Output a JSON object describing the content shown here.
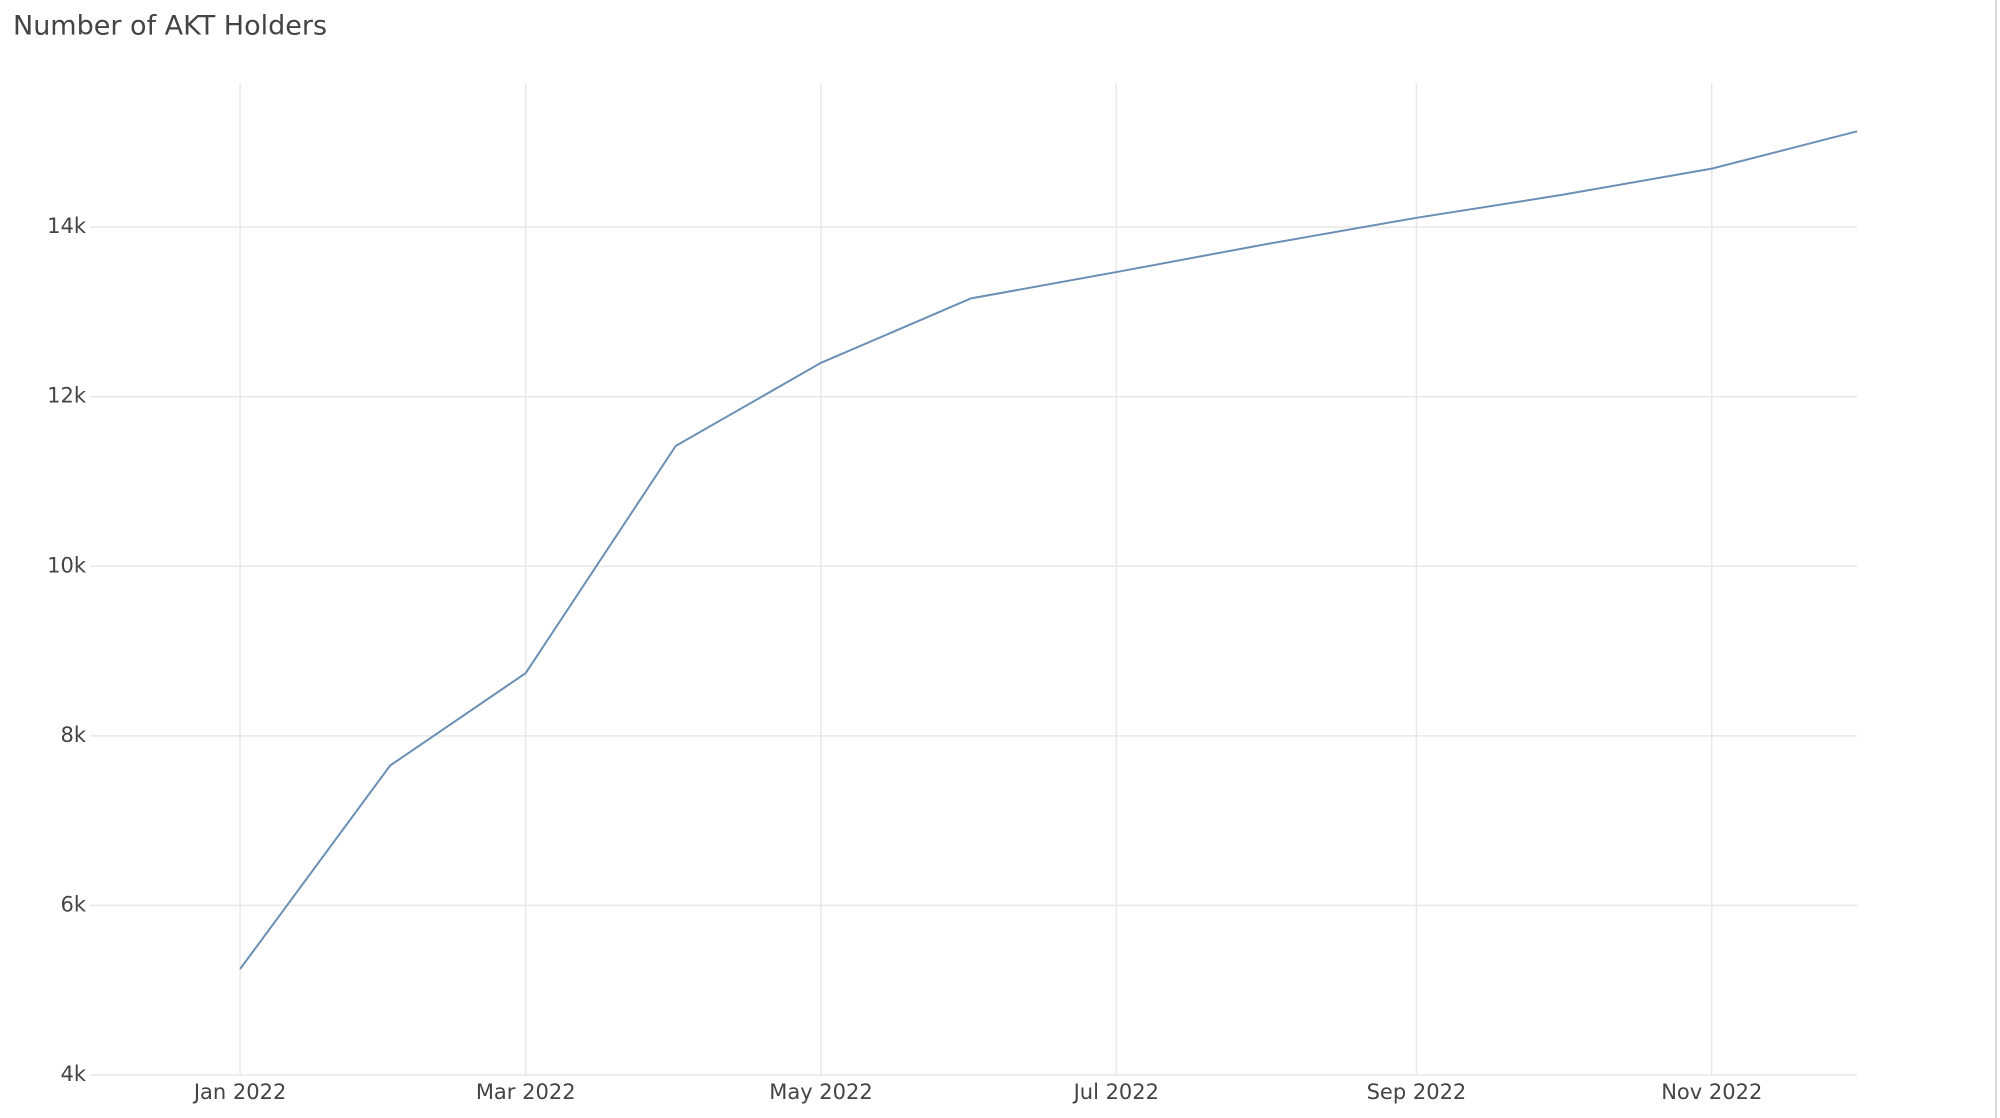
{
  "chart_data": {
    "type": "line",
    "title": "Number of AKT Holders",
    "x": [
      "2022-01",
      "2022-02",
      "2022-03",
      "2022-04",
      "2022-05",
      "2022-06",
      "2022-07",
      "2022-08",
      "2022-09",
      "2022-10",
      "2022-11",
      "2022-12"
    ],
    "series": [
      {
        "color": "#6b8fb5",
        "values": [
          5250,
          7650,
          8740,
          11420,
          12400,
          13160,
          13470,
          13800,
          14110,
          14380,
          14690,
          15130
        ]
      }
    ],
    "xlim": [
      "2021-12",
      "2022-12"
    ],
    "xticks": [
      {
        "value": "2022-01",
        "label": "Jan 2022"
      },
      {
        "value": "2022-03",
        "label": "Mar 2022"
      },
      {
        "value": "2022-05",
        "label": "May 2022"
      },
      {
        "value": "2022-07",
        "label": "Jul 2022"
      },
      {
        "value": "2022-09",
        "label": "Sep 2022"
      },
      {
        "value": "2022-11",
        "label": "Nov 2022"
      }
    ],
    "ylim": [
      4000,
      15700
    ],
    "yticks": [
      {
        "value": 4000,
        "label": "4k"
      },
      {
        "value": 6000,
        "label": "6k"
      },
      {
        "value": 8000,
        "label": "8k"
      },
      {
        "value": 10000,
        "label": "10k"
      },
      {
        "value": 12000,
        "label": "12k"
      },
      {
        "value": 14000,
        "label": "14k"
      }
    ],
    "grid": true
  }
}
